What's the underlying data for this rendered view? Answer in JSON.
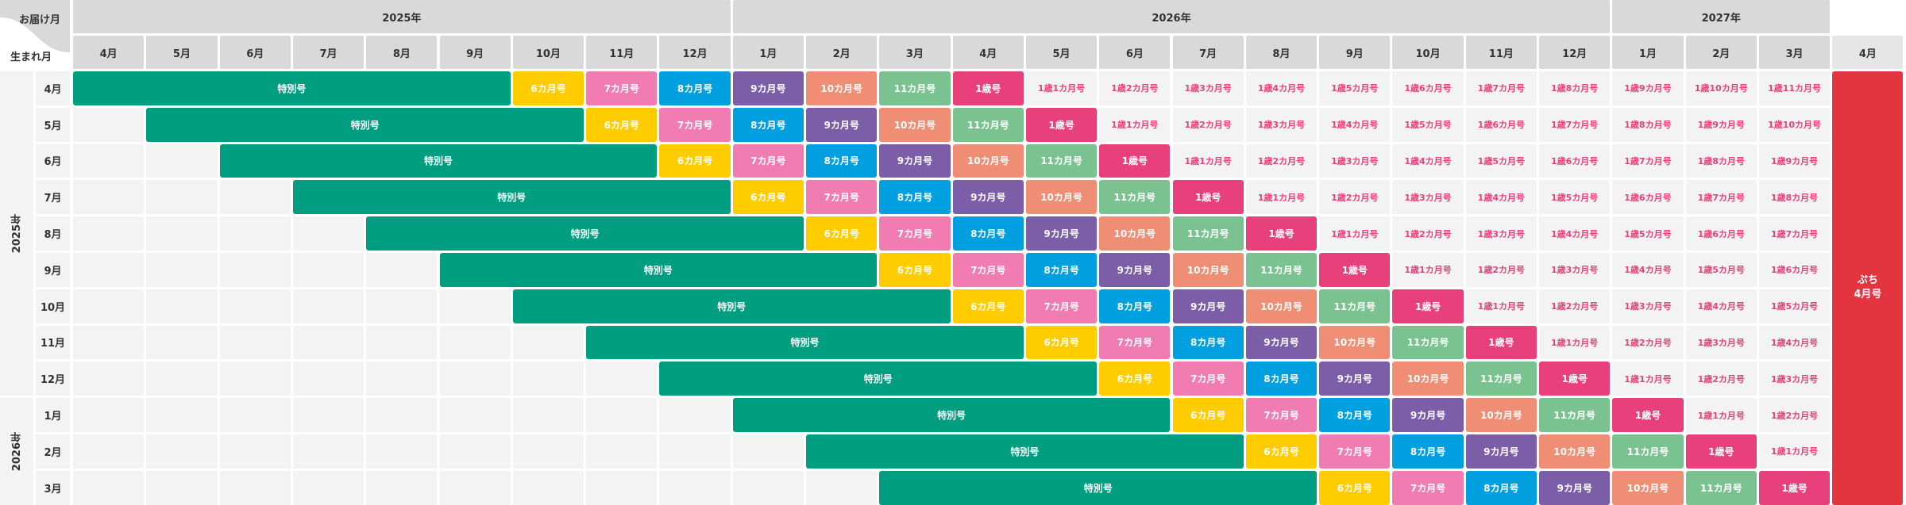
{
  "corner": {
    "delivery_label": "お届け月",
    "birth_label": "生まれ月"
  },
  "delivery_years": [
    {
      "label": "2025年",
      "span": 9
    },
    {
      "label": "2026年",
      "span": 12
    },
    {
      "label": "2027年",
      "span": 3
    },
    {
      "label": "",
      "span": 1
    }
  ],
  "delivery_months": [
    "4月",
    "5月",
    "6月",
    "7月",
    "8月",
    "9月",
    "10月",
    "11月",
    "12月",
    "1月",
    "2月",
    "3月",
    "4月",
    "5月",
    "6月",
    "7月",
    "8月",
    "9月",
    "10月",
    "11月",
    "12月",
    "1月",
    "2月",
    "3月",
    "4月"
  ],
  "birth_years": [
    {
      "label": "2025年",
      "months": [
        "4月",
        "5月",
        "6月",
        "7月",
        "8月",
        "9月",
        "10月",
        "11月",
        "12月"
      ]
    },
    {
      "label": "2026年",
      "months": [
        "1月",
        "2月",
        "3月"
      ]
    }
  ],
  "special_issue_label": "特別号",
  "issue_labels": [
    "6カ月号",
    "7カ月号",
    "8カ月号",
    "9カ月号",
    "10カ月号",
    "11カ月号",
    "1歳号",
    "1歳1カ月号",
    "1歳2カ月号",
    "1歳3カ月号",
    "1歳4カ月号",
    "1歳5カ月号",
    "1歳6カ月号",
    "1歳7カ月号",
    "1歳8カ月号",
    "1歳9カ月号",
    "1歳10カ月号",
    "1歳11カ月号"
  ],
  "final_issue": {
    "line1": "ぷち",
    "line2": "4月号"
  },
  "colors": {
    "special": "#009e80",
    "m6": "#ffcc00",
    "m7": "#f07cb2",
    "m8": "#00a0e0",
    "m9": "#7b5ea7",
    "m10": "#ef8e74",
    "m11": "#7ac28f",
    "y1": "#e8407a",
    "age_text": "#e8407a",
    "final": "#e23540",
    "header_bg": "#d9d9d9",
    "empty_bg": "#f3f3f3"
  }
}
